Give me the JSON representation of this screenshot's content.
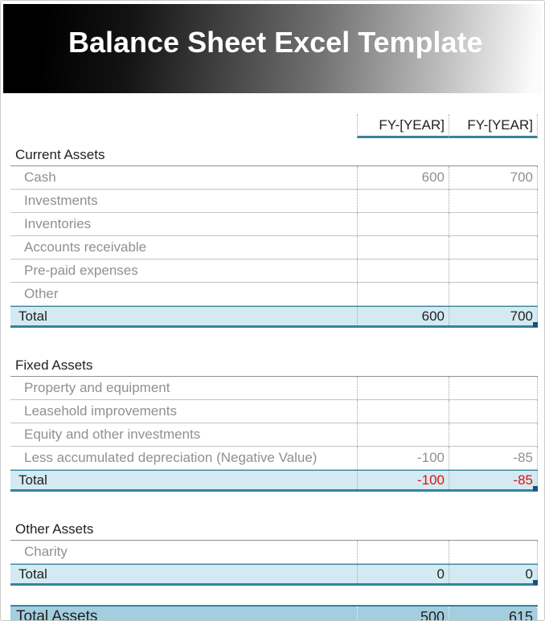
{
  "title": "Balance Sheet Excel Template",
  "columns": {
    "year1": "FY-[YEAR]",
    "year2": "FY-[YEAR]"
  },
  "sections": [
    {
      "name": "Current Assets",
      "rows": [
        {
          "label": "Cash",
          "v1": "600",
          "v2": "700"
        },
        {
          "label": "Investments",
          "v1": "",
          "v2": ""
        },
        {
          "label": "Inventories",
          "v1": "",
          "v2": ""
        },
        {
          "label": "Accounts receivable",
          "v1": "",
          "v2": ""
        },
        {
          "label": "Pre-paid expenses",
          "v1": "",
          "v2": ""
        },
        {
          "label": "Other",
          "v1": "",
          "v2": ""
        }
      ],
      "total": {
        "label": "Total",
        "v1": "600",
        "v2": "700",
        "negative": false,
        "marker": true
      }
    },
    {
      "name": "Fixed Assets",
      "rows": [
        {
          "label": "Property and equipment",
          "v1": "",
          "v2": ""
        },
        {
          "label": "Leasehold improvements",
          "v1": "",
          "v2": ""
        },
        {
          "label": "Equity and other investments",
          "v1": "",
          "v2": ""
        },
        {
          "label": "Less accumulated depreciation (Negative Value)",
          "v1": "-100",
          "v2": "-85"
        }
      ],
      "total": {
        "label": "Total",
        "v1": "-100",
        "v2": "-85",
        "negative": true,
        "marker": true
      }
    },
    {
      "name": "Other Assets",
      "rows": [
        {
          "label": "Charity",
          "v1": "",
          "v2": ""
        }
      ],
      "total": {
        "label": "Total",
        "v1": "0",
        "v2": "0",
        "negative": false,
        "marker": true
      }
    }
  ],
  "grand_total": {
    "label": "Total Assets",
    "v1": "500",
    "v2": "615"
  },
  "colors": {
    "accent_teal": "#35839c",
    "total_row_bg": "#d4eaf2",
    "grand_total_bg": "#a2cedf",
    "negative_value": "#dd1111",
    "muted_text": "#909090",
    "dark_text": "#1f1f1f",
    "marker_blue": "#1e4e79"
  }
}
